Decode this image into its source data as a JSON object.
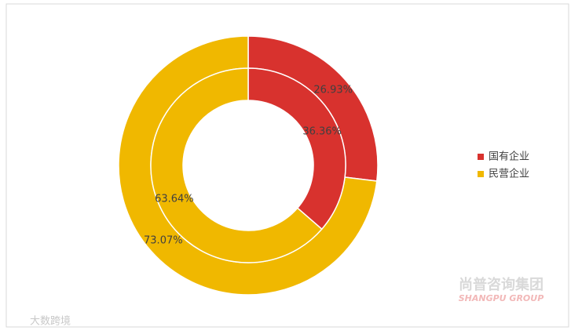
{
  "chart_data": {
    "type": "doughnut",
    "categories": [
      "国有企业",
      "民营企业"
    ],
    "colors": [
      "#d8322e",
      "#f0b800"
    ],
    "series": [
      {
        "values": [
          26.93,
          73.07
        ],
        "value_labels": [
          "26.93%",
          "73.07%"
        ]
      },
      {
        "values": [
          36.36,
          63.64
        ],
        "value_labels": [
          "36.36%",
          "63.64%"
        ]
      }
    ],
    "legend": "right",
    "watermarks": [
      "尚普咨询集团",
      "SHANGPU GROUP",
      "大数跨境"
    ]
  }
}
